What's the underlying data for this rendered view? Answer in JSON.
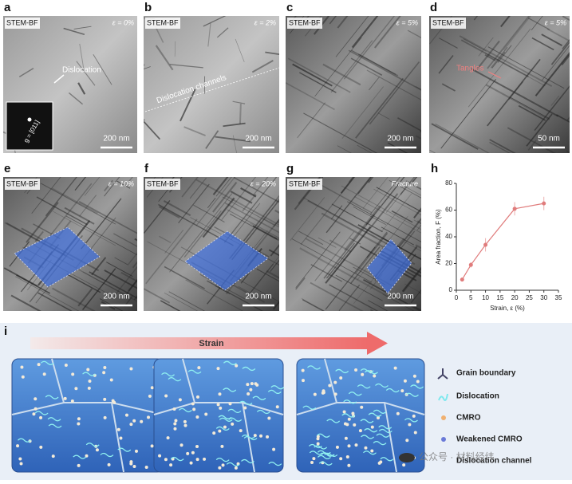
{
  "panels": [
    {
      "letter": "a",
      "detector": "STEM-BF",
      "strain": "ε = 0%",
      "scale_bar": "200 nm",
      "annotation": "Dislocation",
      "inset": "g = [011]"
    },
    {
      "letter": "b",
      "detector": "STEM-BF",
      "strain": "ε = 2%",
      "scale_bar": "200 nm",
      "annotation": "Dislocation channels"
    },
    {
      "letter": "c",
      "detector": "STEM-BF",
      "strain": "ε = 5%",
      "scale_bar": "200 nm"
    },
    {
      "letter": "d",
      "detector": "STEM-BF",
      "strain": "ε = 5%",
      "scale_bar": "50 nm",
      "annotation": "Tangles"
    },
    {
      "letter": "e",
      "detector": "STEM-BF",
      "strain": "ε = 10%",
      "scale_bar": "200 nm"
    },
    {
      "letter": "f",
      "detector": "STEM-BF",
      "strain": "ε = 20%",
      "scale_bar": "200 nm"
    },
    {
      "letter": "g",
      "detector": "STEM-BF",
      "strain": "Fracture",
      "scale_bar": "200 nm"
    }
  ],
  "chart_data": {
    "type": "line",
    "letter": "h",
    "x_label": "Strain, ε (%)",
    "y_label": "Area fraction, F (%)",
    "x": [
      2,
      5,
      10,
      20,
      30
    ],
    "values": [
      8,
      19,
      34,
      61,
      65
    ],
    "errors": [
      1,
      2,
      5,
      5,
      5
    ],
    "color": "#e07c7c",
    "xlim": [
      0,
      35
    ],
    "xticks": [
      0,
      5,
      10,
      15,
      20,
      25,
      30,
      35
    ],
    "ylim": [
      0,
      80
    ],
    "yticks": [
      0,
      20,
      40,
      60,
      80
    ]
  },
  "schematic": {
    "letter": "i",
    "arrow_label": "Strain",
    "legend": [
      "Grain boundary",
      "Dislocation",
      "CMRO",
      "Weakened CMRO",
      "Dislocation channel"
    ],
    "watermark": "公众号 · 材料经纬"
  }
}
